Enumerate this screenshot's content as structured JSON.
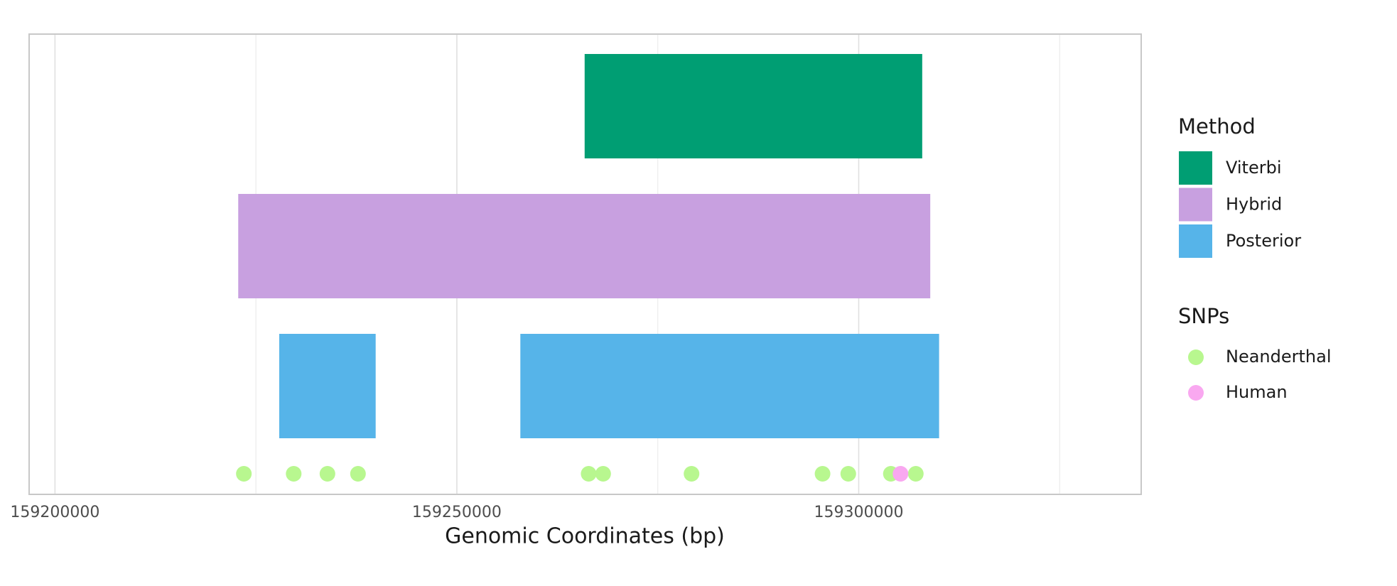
{
  "chart_data": {
    "type": "interval",
    "xlabel": "Genomic Coordinates (bp)",
    "xlim": [
      159196785,
      159335144
    ],
    "xticks": [
      159200000,
      159250000,
      159300000
    ],
    "xminorticks": [
      159225000,
      159275000,
      159325000
    ],
    "grid": true,
    "legend_position": "right",
    "method_legend_title": "Method",
    "snp_legend_title": "SNPs",
    "tracks": [
      {
        "name": "Viterbi",
        "color": "#009e73",
        "intervals": [
          [
            159265900,
            159307900
          ]
        ]
      },
      {
        "name": "Hybrid",
        "color": "#c8a0e0",
        "intervals": [
          [
            159222800,
            159308900
          ]
        ]
      },
      {
        "name": "Posterior",
        "color": "#56b4e9",
        "intervals": [
          [
            159227900,
            159239900
          ],
          [
            159257900,
            159310000
          ]
        ]
      }
    ],
    "snps": [
      {
        "name": "Neanderthal",
        "color": "#b8f78f",
        "x": [
          159223500,
          159229700,
          159233900,
          159237700,
          159266400,
          159268200,
          159279200,
          159295500,
          159298700,
          159304000,
          159307100
        ]
      },
      {
        "name": "Human",
        "color": "#f9a8f0",
        "x": [
          159305200
        ]
      }
    ]
  }
}
